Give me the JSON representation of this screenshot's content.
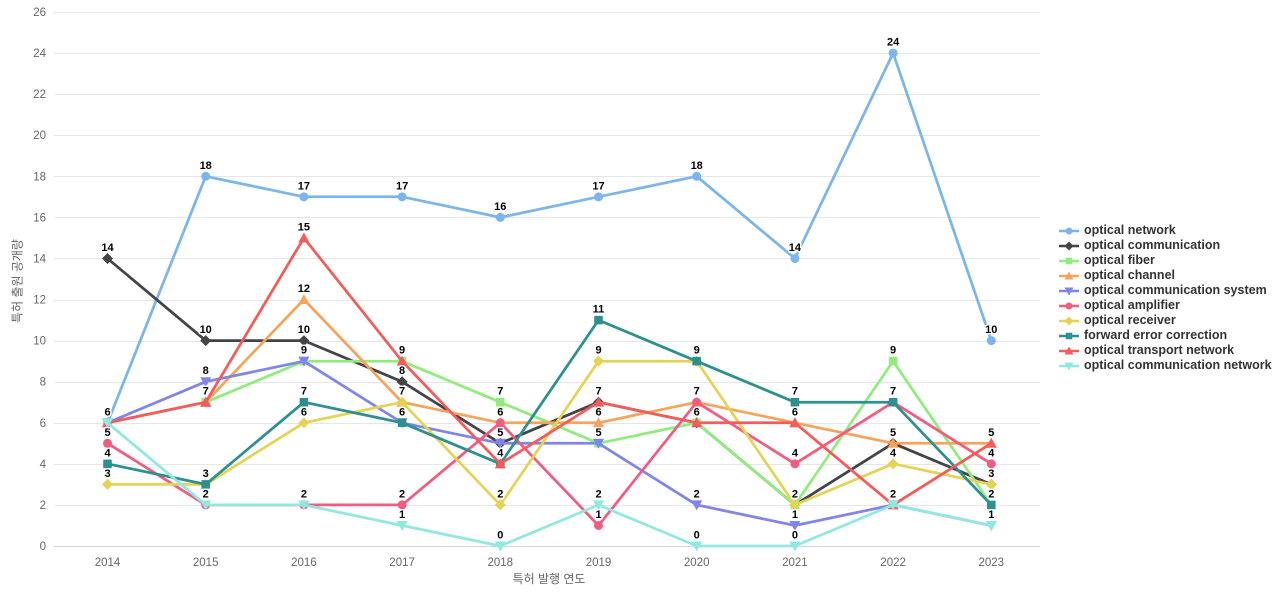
{
  "chart_data": {
    "type": "line",
    "title": "",
    "xlabel": "특허 발행 연도",
    "ylabel": "특허 출원 공개량",
    "x": [
      2014,
      2015,
      2016,
      2017,
      2018,
      2019,
      2020,
      2021,
      2022,
      2023
    ],
    "ylim": [
      0,
      26
    ],
    "yticks": [
      0,
      2,
      4,
      6,
      8,
      10,
      12,
      14,
      16,
      18,
      20,
      22,
      24,
      26
    ],
    "grid": "horizontal",
    "legend_position": "right",
    "data_labels": "shown, duplicates hidden",
    "colors": {
      "background": "#ffffff",
      "gridline": "#e6e6e6",
      "axis_line": "#ccd6eb",
      "tick_label": "#666666",
      "axis_title": "#666666",
      "legend_text": "#333333",
      "data_label": "#000000"
    },
    "series": [
      {
        "name": "optical network",
        "color": "#7cb5ec",
        "marker": "circle",
        "values": [
          6,
          18,
          17,
          17,
          16,
          17,
          18,
          14,
          24,
          10
        ]
      },
      {
        "name": "optical communication",
        "color": "#434348",
        "marker": "diamond",
        "values": [
          14,
          10,
          10,
          8,
          5,
          7,
          6,
          2,
          5,
          3
        ]
      },
      {
        "name": "optical fiber",
        "color": "#90ed7d",
        "marker": "square",
        "values": [
          6,
          7,
          9,
          9,
          7,
          5,
          6,
          2,
          9,
          2
        ]
      },
      {
        "name": "optical channel",
        "color": "#f7a35c",
        "marker": "triangle",
        "values": [
          6,
          7,
          12,
          7,
          6,
          6,
          7,
          6,
          5,
          5
        ]
      },
      {
        "name": "optical communication system",
        "color": "#8085e9",
        "marker": "triangle-down",
        "values": [
          6,
          8,
          9,
          6,
          5,
          5,
          2,
          1,
          2,
          1
        ]
      },
      {
        "name": "optical amplifier",
        "color": "#f15c80",
        "marker": "circle",
        "values": [
          5,
          2,
          2,
          2,
          6,
          1,
          7,
          4,
          7,
          4
        ]
      },
      {
        "name": "optical receiver",
        "color": "#e4d354",
        "marker": "diamond",
        "values": [
          3,
          3,
          6,
          7,
          2,
          9,
          9,
          2,
          4,
          3
        ]
      },
      {
        "name": "forward error correction",
        "color": "#2b908f",
        "marker": "square",
        "values": [
          4,
          3,
          7,
          6,
          4,
          11,
          9,
          7,
          7,
          2
        ]
      },
      {
        "name": "optical transport network",
        "color": "#f45b5b",
        "marker": "triangle",
        "values": [
          6,
          7,
          15,
          9,
          4,
          7,
          6,
          6,
          2,
          5
        ]
      },
      {
        "name": "optical communication network",
        "color": "#91e8e1",
        "marker": "triangle-down",
        "values": [
          6,
          2,
          2,
          1,
          0,
          2,
          0,
          0,
          2,
          1
        ]
      }
    ]
  }
}
